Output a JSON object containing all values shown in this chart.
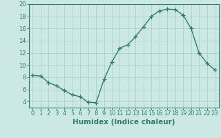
{
  "x": [
    0,
    1,
    2,
    3,
    4,
    5,
    6,
    7,
    8,
    9,
    10,
    11,
    12,
    13,
    14,
    15,
    16,
    17,
    18,
    19,
    20,
    21,
    22,
    23
  ],
  "y": [
    8.3,
    8.2,
    7.1,
    6.6,
    5.8,
    5.1,
    4.8,
    3.9,
    3.8,
    7.6,
    10.5,
    12.8,
    13.3,
    14.7,
    16.3,
    18.0,
    18.9,
    19.2,
    19.1,
    18.2,
    16.0,
    12.0,
    10.3,
    9.2
  ],
  "line_color": "#2e7d6e",
  "marker_color": "#2e7d6e",
  "bg_color": "#cce8e4",
  "grid_color": "#aaccca",
  "grid_minor_color": "#c0deda",
  "xlabel": "Humidex (Indice chaleur)",
  "ylim": [
    3,
    20
  ],
  "xlim": [
    -0.5,
    23.5
  ],
  "yticks": [
    4,
    6,
    8,
    10,
    12,
    14,
    16,
    18,
    20
  ],
  "xticks": [
    0,
    1,
    2,
    3,
    4,
    5,
    6,
    7,
    8,
    9,
    10,
    11,
    12,
    13,
    14,
    15,
    16,
    17,
    18,
    19,
    20,
    21,
    22,
    23
  ],
  "xtick_labels": [
    "0",
    "1",
    "2",
    "3",
    "4",
    "5",
    "6",
    "7",
    "8",
    "9",
    "10",
    "11",
    "12",
    "13",
    "14",
    "15",
    "16",
    "17",
    "18",
    "19",
    "20",
    "21",
    "22",
    "23"
  ],
  "axis_color": "#2e7d6e",
  "tick_color": "#2e7d6e",
  "label_color": "#2e7d6e",
  "font_size_xlabel": 7.5,
  "font_size_ticks": 6,
  "line_width": 1.0,
  "marker_size": 2.5
}
